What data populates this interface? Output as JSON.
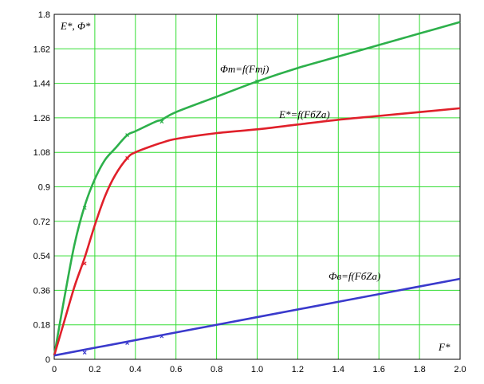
{
  "chart_data": {
    "type": "line",
    "ylabel": "E*, Φ*",
    "xlabel": "F*",
    "xlim": [
      0,
      2.0
    ],
    "ylim": [
      0,
      1.8
    ],
    "grid": true,
    "xticks": [
      0,
      0.2,
      0.4,
      0.6,
      0.8,
      1.0,
      1.2,
      1.4,
      1.6,
      1.8,
      2.0
    ],
    "xtick_labels": [
      "0",
      "0.2",
      "0.4",
      "0.6",
      "0.8",
      "1.0",
      "1.2",
      "1.4",
      "1.6",
      "1.8",
      "2.0"
    ],
    "yticks": [
      0,
      0.18,
      0.36,
      0.54,
      0.72,
      0.9,
      1.08,
      1.26,
      1.44,
      1.62,
      1.8
    ],
    "ytick_labels": [
      "0",
      "0.18",
      "0.36",
      "0.54",
      "0.72",
      "0.9",
      "1.08",
      "1.26",
      "1.44",
      "1.62",
      "1.8"
    ],
    "series": [
      {
        "name": "Φm=f(Fmj)",
        "color": "#2db04b",
        "x": [
          0,
          0.05,
          0.1,
          0.15,
          0.2,
          0.25,
          0.3,
          0.36,
          0.4,
          0.5,
          0.53,
          0.6,
          0.8,
          1.0,
          1.2,
          1.4,
          1.6,
          1.8,
          2.0
        ],
        "y": [
          0.02,
          0.32,
          0.6,
          0.8,
          0.94,
          1.04,
          1.1,
          1.17,
          1.19,
          1.24,
          1.25,
          1.29,
          1.37,
          1.45,
          1.52,
          1.58,
          1.64,
          1.7,
          1.76
        ],
        "markers_x": [
          0.15,
          0.36,
          0.53,
          1.0
        ],
        "markers_y": [
          0.79,
          1.17,
          1.24,
          1.45
        ]
      },
      {
        "name": "E*=f(FбZа)",
        "color": "#e0202a",
        "x": [
          0,
          0.05,
          0.1,
          0.15,
          0.2,
          0.25,
          0.3,
          0.36,
          0.4,
          0.5,
          0.53,
          0.6,
          0.8,
          1.0,
          1.2,
          1.4,
          1.6,
          1.8,
          2.0
        ],
        "y": [
          0.02,
          0.2,
          0.38,
          0.53,
          0.7,
          0.85,
          0.96,
          1.05,
          1.08,
          1.12,
          1.13,
          1.15,
          1.18,
          1.2,
          1.225,
          1.25,
          1.27,
          1.29,
          1.31
        ],
        "markers_x": [
          0.15,
          0.36
        ],
        "markers_y": [
          0.5,
          1.05
        ]
      },
      {
        "name": "Фв=f(FбZа)",
        "color": "#3a3acc",
        "x": [
          0,
          0.5,
          1.0,
          1.5,
          2.0
        ],
        "y": [
          0.02,
          0.12,
          0.22,
          0.32,
          0.42
        ],
        "markers_x": [
          0.15,
          0.36,
          0.53
        ],
        "markers_y": [
          0.035,
          0.085,
          0.12
        ]
      }
    ]
  }
}
